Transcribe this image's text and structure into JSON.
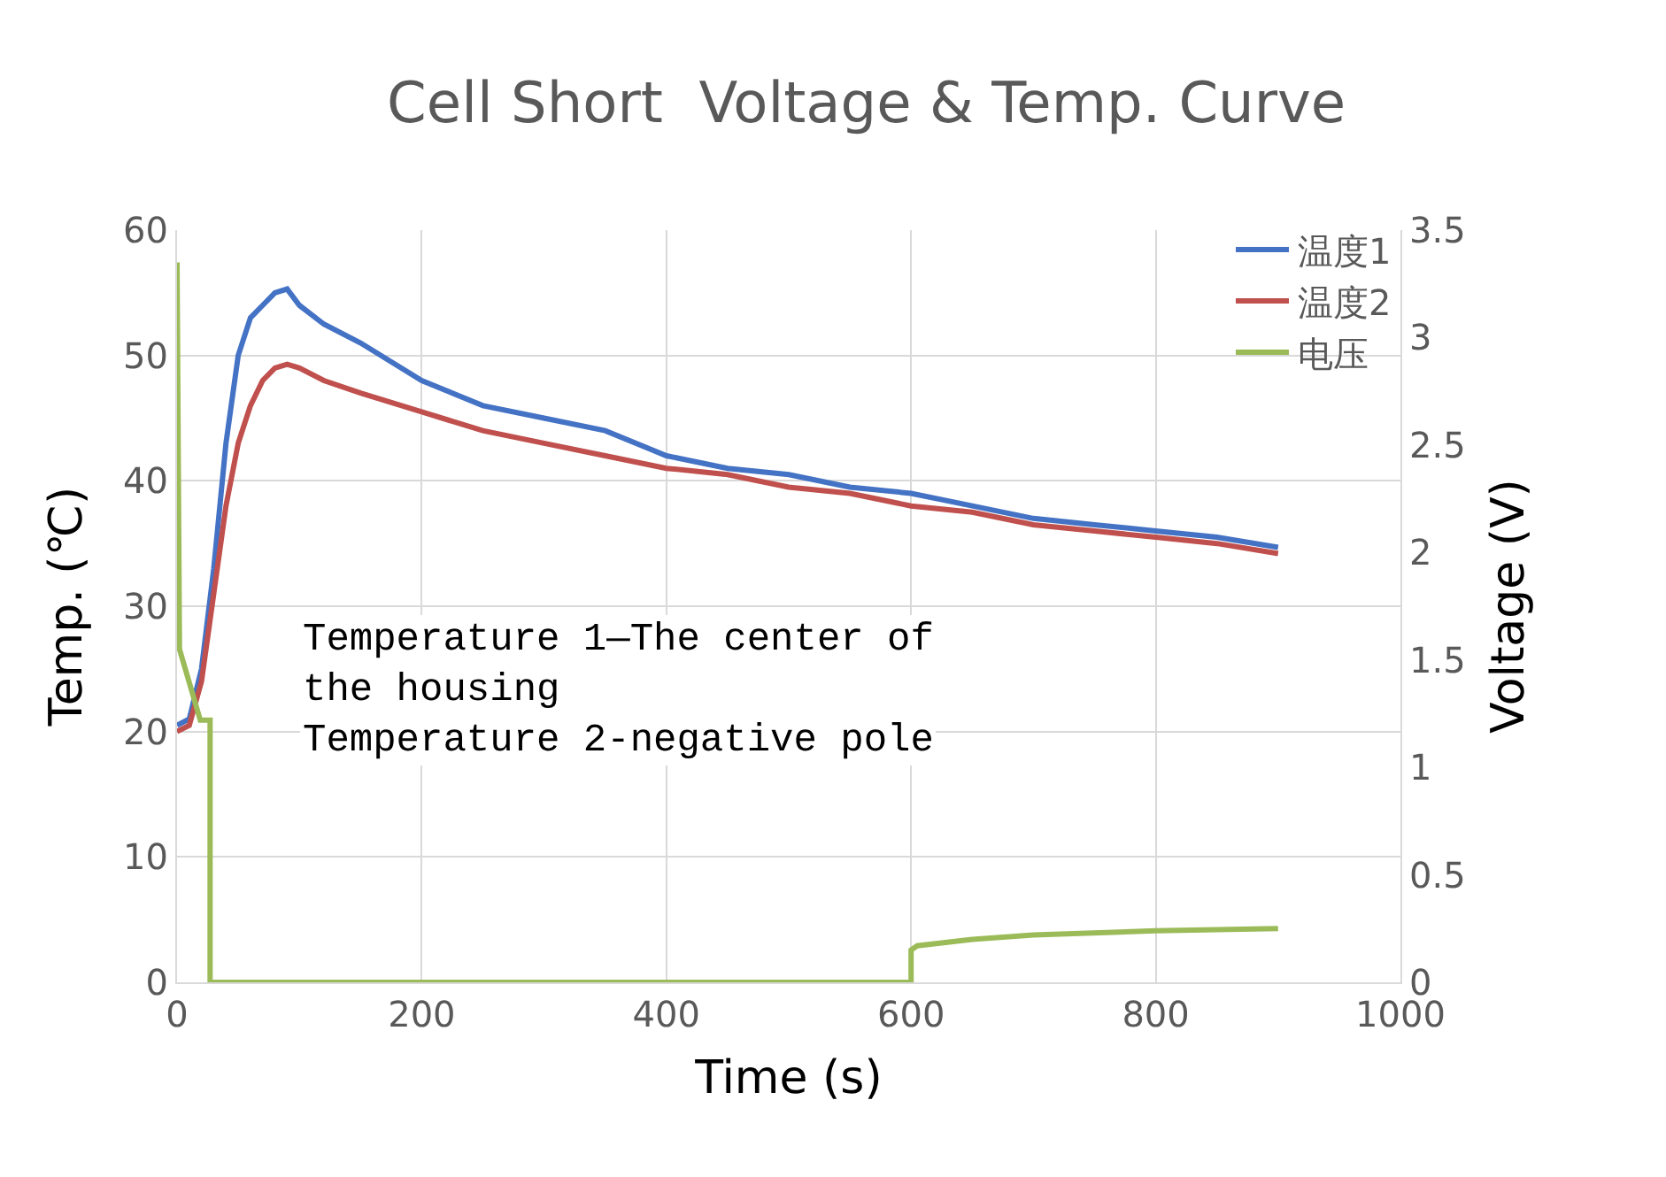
{
  "chart_data": {
    "type": "line",
    "title": "Cell Short  Voltage & Temp. Curve",
    "xlabel": "Time (s)",
    "ylabel": "Temp. (℃)",
    "y2label": "Voltage (V)",
    "xlim": [
      0,
      1000
    ],
    "xticks": [
      0,
      200,
      400,
      600,
      800,
      1000
    ],
    "ylim": [
      0,
      60
    ],
    "yticks": [
      0,
      10,
      20,
      30,
      40,
      50,
      60
    ],
    "y2lim": [
      0,
      3.5
    ],
    "y2ticks": [
      0,
      0.5,
      1,
      1.5,
      2,
      2.5,
      3,
      3.5
    ],
    "grid": true,
    "legend": "top right",
    "marker": "none",
    "line_style": "solid",
    "annotations": [
      "Temperature 1—The center of\nthe housing\nTemperature 2-negative pole"
    ],
    "series": [
      {
        "name": "温度1",
        "color": "#4472c4",
        "x": [
          0,
          10,
          20,
          30,
          40,
          50,
          60,
          70,
          80,
          90,
          100,
          120,
          150,
          200,
          250,
          300,
          350,
          400,
          450,
          500,
          550,
          600,
          650,
          700,
          750,
          800,
          850,
          900
        ],
        "values": [
          20.5,
          21,
          25,
          33,
          43,
          50,
          53,
          54,
          55,
          55.3,
          54,
          52.5,
          51,
          48,
          46,
          45,
          44,
          42,
          41,
          40.5,
          39.5,
          39,
          38,
          37,
          36.5,
          36,
          35.5,
          34.7
        ]
      },
      {
        "name": "温度2",
        "color": "#c0504d",
        "x": [
          0,
          10,
          20,
          30,
          40,
          50,
          60,
          70,
          80,
          90,
          100,
          120,
          150,
          200,
          250,
          300,
          350,
          400,
          450,
          500,
          550,
          600,
          650,
          700,
          750,
          800,
          850,
          900
        ],
        "values": [
          20,
          20.5,
          24,
          31,
          38,
          43,
          46,
          48,
          49,
          49.3,
          49,
          48,
          47,
          45.5,
          44,
          43,
          42,
          41,
          40.5,
          39.5,
          39,
          38,
          37.5,
          36.5,
          36,
          35.5,
          35,
          34.2
        ]
      },
      {
        "name": "电压",
        "color": "#9bbb59",
        "axis": "y2",
        "x": [
          0,
          2,
          19,
          27,
          27,
          600,
          600,
          605,
          650,
          700,
          800,
          900
        ],
        "values": [
          3.35,
          1.55,
          1.22,
          1.22,
          0,
          0,
          0.15,
          0.17,
          0.2,
          0.22,
          0.24,
          0.25
        ]
      }
    ]
  }
}
